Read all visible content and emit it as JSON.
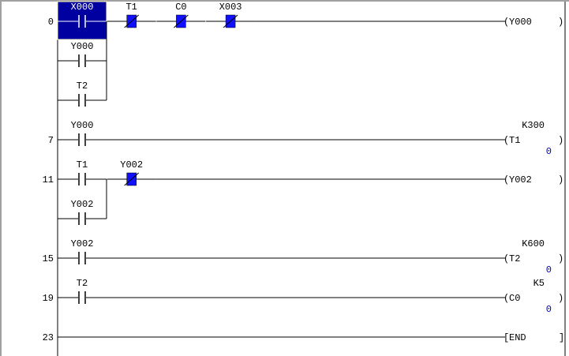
{
  "colors": {
    "wire": "#000000",
    "selection": "#0000a0",
    "contact_on": "#1010ff",
    "current_value": "#0000c0"
  },
  "cursor": {
    "rung_step": "0",
    "element": "X000"
  },
  "rungs": [
    {
      "step": "0",
      "lines": [
        {
          "elements": [
            {
              "type": "no-contact",
              "label": "X000",
              "col": 0,
              "selected": true
            },
            {
              "type": "nc-contact",
              "label": "T1",
              "col": 1,
              "energized": true
            },
            {
              "type": "nc-contact",
              "label": "C0",
              "col": 2,
              "energized": true
            },
            {
              "type": "nc-contact",
              "label": "X003",
              "col": 3,
              "energized": true
            }
          ],
          "coil": {
            "label": "Y000"
          }
        },
        {
          "elements": [
            {
              "type": "no-contact",
              "label": "Y000",
              "col": 0
            }
          ]
        },
        {
          "elements": [
            {
              "type": "no-contact",
              "label": "T2",
              "col": 0
            }
          ]
        }
      ]
    },
    {
      "step": "7",
      "lines": [
        {
          "elements": [
            {
              "type": "no-contact",
              "label": "Y000",
              "col": 0
            }
          ],
          "coil": {
            "label": "T1",
            "setting": "K300",
            "current": "0"
          }
        }
      ]
    },
    {
      "step": "11",
      "lines": [
        {
          "elements": [
            {
              "type": "no-contact",
              "label": "T1",
              "col": 0
            },
            {
              "type": "nc-contact",
              "label": "Y002",
              "col": 1,
              "energized": true
            }
          ],
          "coil": {
            "label": "Y002"
          }
        },
        {
          "elements": [
            {
              "type": "no-contact",
              "label": "Y002",
              "col": 0
            }
          ]
        }
      ]
    },
    {
      "step": "15",
      "lines": [
        {
          "elements": [
            {
              "type": "no-contact",
              "label": "Y002",
              "col": 0
            }
          ],
          "coil": {
            "label": "T2",
            "setting": "K600",
            "current": "0"
          }
        }
      ]
    },
    {
      "step": "19",
      "lines": [
        {
          "elements": [
            {
              "type": "no-contact",
              "label": "T2",
              "col": 0
            }
          ],
          "coil": {
            "label": "C0",
            "setting": "K5",
            "current": "0"
          }
        }
      ]
    },
    {
      "step": "23",
      "lines": [
        {
          "elements": [],
          "coil": {
            "label": "END",
            "type": "end"
          }
        }
      ]
    }
  ]
}
